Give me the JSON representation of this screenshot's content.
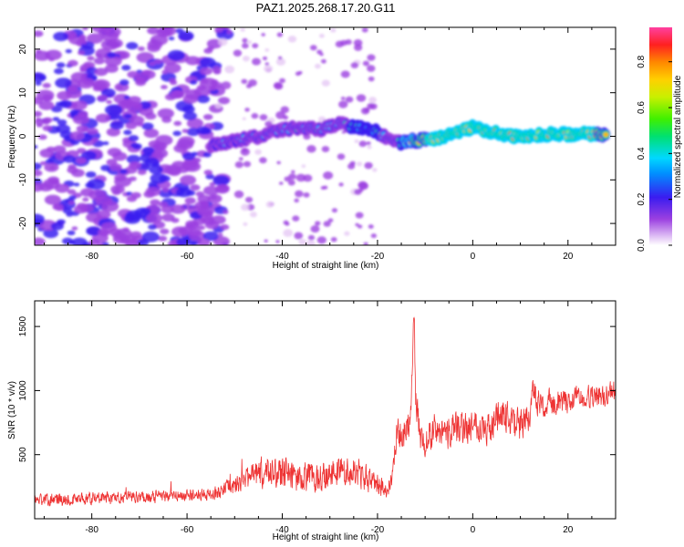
{
  "title": "PAZ1.2025.268.17.20.G11",
  "chart_data": [
    {
      "type": "heatmap",
      "xlabel": "Height of straight line (km)",
      "ylabel": "Frequency (Hz)",
      "xlim": [
        -92,
        30
      ],
      "ylim": [
        -25,
        25
      ],
      "xticks": [
        -80,
        -60,
        -40,
        -20,
        0,
        20
      ],
      "yticks": [
        -20,
        -10,
        0,
        10,
        20
      ],
      "colorbar": {
        "label": "Normalized spectral amplitude",
        "range": [
          0,
          0.95
        ],
        "ticks": [
          0.0,
          0.2,
          0.4,
          0.6,
          0.8
        ],
        "tick_labels": [
          "0.0",
          "0.2",
          "0.4",
          "0.6",
          "0.8"
        ],
        "colormap": "rainbow",
        "colors": [
          "#ffffff",
          "#e6c8f5",
          "#9b40e0",
          "#3a1cf0",
          "#00c8ff",
          "#00e070",
          "#c8f000",
          "#ffb000",
          "#ff2020"
        ]
      },
      "ridge": {
        "description": "Frequency of peak spectral amplitude along the signal track",
        "x": [
          -55,
          -50,
          -45,
          -40,
          -36,
          -32,
          -28,
          -24,
          -20,
          -16,
          -12,
          -8,
          -4,
          0,
          4,
          8,
          12,
          16,
          20,
          24,
          28
        ],
        "y": [
          -2,
          -1,
          0,
          1.5,
          2,
          1.5,
          3,
          2,
          1,
          -1.5,
          -1,
          -0.5,
          0.5,
          2,
          1,
          0,
          0,
          0.5,
          0.5,
          0.5,
          0.5
        ],
        "amplitude": [
          0.25,
          0.3,
          0.35,
          0.38,
          0.38,
          0.4,
          0.4,
          0.45,
          0.45,
          0.35,
          0.7,
          0.85,
          0.85,
          0.85,
          0.85,
          0.85,
          0.85,
          0.85,
          0.85,
          0.85,
          0.75
        ]
      },
      "noise_region": {
        "x_range": [
          -92,
          -55
        ],
        "amplitude_range": [
          0.05,
          0.25
        ],
        "description": "Scattered low-amplitude noise below -55 km"
      }
    },
    {
      "type": "line",
      "xlabel": "Height of straight line (km)",
      "ylabel": "SNR (10 * v/v)",
      "xlim": [
        -92,
        30
      ],
      "ylim": [
        0,
        1700
      ],
      "xticks": [
        -80,
        -60,
        -40,
        -20,
        0,
        20
      ],
      "yticks": [
        500,
        1000,
        1500
      ],
      "series": [
        {
          "name": "SNR",
          "color": "#ee3333",
          "x": [
            -92,
            -85,
            -80,
            -75,
            -70,
            -65,
            -60,
            -55,
            -52,
            -48,
            -45,
            -42,
            -40,
            -38,
            -35,
            -32,
            -30,
            -27,
            -24,
            -22,
            -20,
            -18,
            -17,
            -16,
            -15,
            -14,
            -13,
            -12.3,
            -12,
            -11,
            -10,
            -8,
            -6,
            -4,
            -2,
            0,
            2,
            4,
            6,
            8,
            10,
            12,
            12.5,
            14,
            16,
            18,
            20,
            22,
            24,
            26,
            28,
            30
          ],
          "y": [
            150,
            155,
            160,
            165,
            170,
            175,
            180,
            190,
            230,
            300,
            350,
            380,
            350,
            320,
            320,
            330,
            370,
            380,
            360,
            300,
            270,
            220,
            300,
            660,
            650,
            700,
            780,
            1650,
            900,
            650,
            600,
            700,
            650,
            720,
            700,
            750,
            720,
            700,
            820,
            750,
            720,
            760,
            1050,
            850,
            900,
            920,
            900,
            950,
            950,
            950,
            960,
            1000
          ],
          "noise_amplitude": [
            60,
            60,
            60,
            60,
            60,
            60,
            60,
            60,
            80,
            100,
            150,
            150,
            200,
            150,
            150,
            150,
            150,
            150,
            150,
            150,
            100,
            80,
            80,
            150,
            150,
            160,
            180,
            100,
            170,
            150,
            150,
            160,
            160,
            160,
            160,
            150,
            160,
            170,
            180,
            170,
            160,
            150,
            100,
            140,
            130,
            120,
            110,
            110,
            110,
            110,
            110,
            110
          ]
        }
      ]
    }
  ]
}
